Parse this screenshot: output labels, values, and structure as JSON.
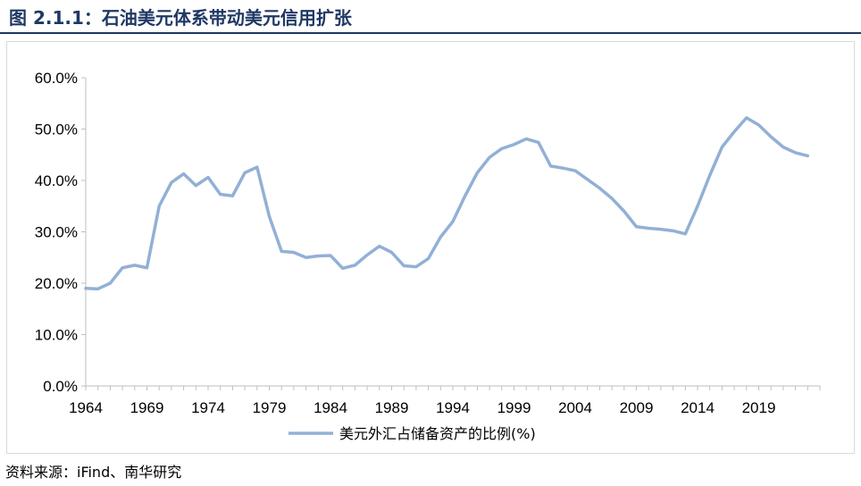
{
  "figure": {
    "title": "图 2.1.1：石油美元体系带动美元信用扩张",
    "source": "资料来源：iFind、南华研究"
  },
  "colors": {
    "title": "#1f3864",
    "line": "#92b0d6",
    "axis": "#bfbfbf"
  },
  "chart_data": {
    "type": "line",
    "title": "",
    "xlabel": "",
    "ylabel": "",
    "ylim": [
      0,
      60
    ],
    "y_ticks": [
      0,
      10,
      20,
      30,
      40,
      50,
      60
    ],
    "y_tick_labels": [
      "0.0%",
      "10.0%",
      "20.0%",
      "30.0%",
      "40.0%",
      "50.0%",
      "60.0%"
    ],
    "x_tick_labels": [
      "1964",
      "1969",
      "1974",
      "1979",
      "1984",
      "1989",
      "1994",
      "1999",
      "2004",
      "2009",
      "2014",
      "2019"
    ],
    "grid": false,
    "legend_position": "bottom",
    "x": [
      1964,
      1965,
      1966,
      1967,
      1968,
      1969,
      1970,
      1971,
      1972,
      1973,
      1974,
      1975,
      1976,
      1977,
      1978,
      1979,
      1980,
      1981,
      1982,
      1983,
      1984,
      1985,
      1986,
      1987,
      1988,
      1989,
      1990,
      1991,
      1992,
      1993,
      1994,
      1995,
      1996,
      1997,
      1998,
      1999,
      2000,
      2001,
      2002,
      2003,
      2004,
      2005,
      2006,
      2007,
      2008,
      2009,
      2010,
      2011,
      2012,
      2013,
      2014,
      2015,
      2016,
      2017,
      2018,
      2019,
      2020,
      2021,
      2022,
      2023,
      2024
    ],
    "series": [
      {
        "name": "美元外汇占储备资产的比例(%)",
        "values": [
          19.0,
          18.9,
          20.0,
          23.0,
          23.5,
          23.0,
          35.0,
          39.6,
          41.3,
          39.0,
          40.6,
          37.3,
          37.0,
          41.5,
          42.6,
          33.0,
          26.2,
          26.0,
          25.0,
          25.3,
          25.4,
          22.9,
          23.5,
          25.5,
          27.2,
          26.0,
          23.4,
          23.2,
          24.8,
          29.0,
          32.0,
          37.0,
          41.5,
          44.5,
          46.2,
          47.0,
          48.1,
          47.4,
          42.8,
          42.4,
          41.9,
          40.2,
          38.5,
          36.5,
          34.0,
          31.0,
          30.7,
          30.5,
          30.2,
          29.6,
          35.0,
          41.0,
          46.5,
          49.5,
          52.2,
          50.8,
          48.5,
          46.5,
          45.4,
          44.8,
          null
        ]
      }
    ]
  }
}
